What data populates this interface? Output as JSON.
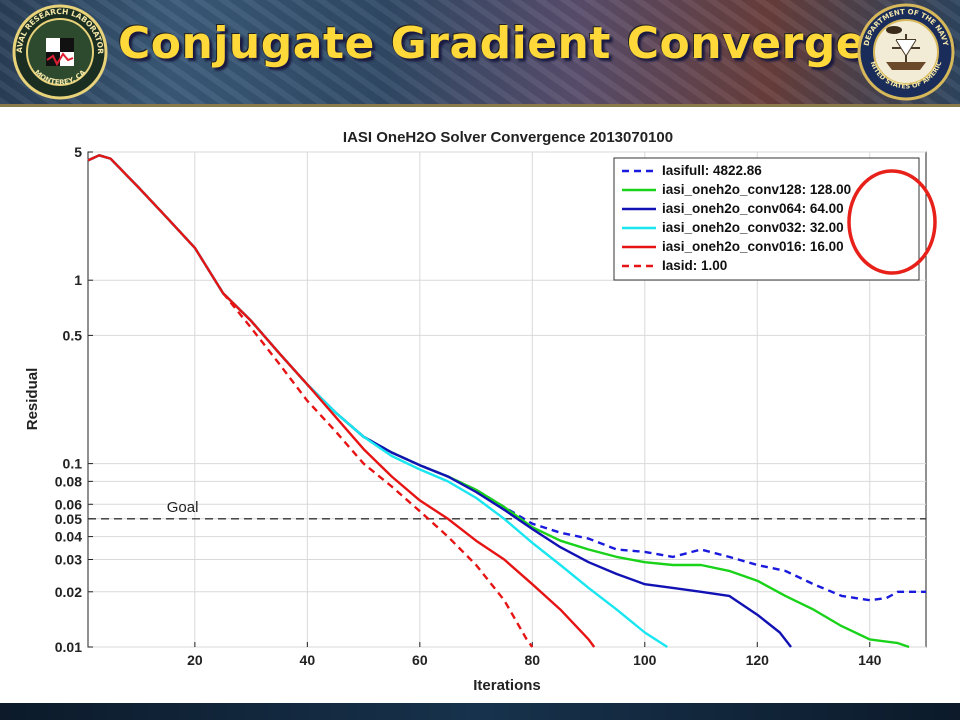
{
  "header": {
    "title": "Conjugate Gradient Convergence",
    "left_logo": {
      "icon": "nrl-seal-icon",
      "ring_text": "NAVAL RESEARCH LABORATORY",
      "bottom_text": "MONTEREY, CA"
    },
    "right_logo": {
      "icon": "navy-seal-icon",
      "ring_text": "DEPARTMENT OF THE NAVY",
      "bottom_text": "UNITED STATES OF AMERICA"
    }
  },
  "chart_data": {
    "type": "line",
    "title": "IASI OneH2O Solver Convergence 2013070100",
    "xlabel": "Iterations",
    "ylabel": "Residual",
    "yscale": "log",
    "xlim": [
      1,
      150
    ],
    "ylim": [
      0.01,
      5
    ],
    "xticks": [
      20,
      40,
      60,
      80,
      100,
      120,
      140
    ],
    "yticks": [
      0.01,
      0.02,
      0.03,
      0.04,
      0.05,
      0.06,
      0.08,
      0.1,
      0.5,
      1,
      5
    ],
    "ytick_labels": [
      "0.01",
      "0.02",
      "0.03",
      "0.04",
      "0.05",
      "0.06",
      "0.08",
      "0.1",
      "0.5",
      "1",
      "5"
    ],
    "grid": true,
    "legend_position": "top-right",
    "goal": {
      "value": 0.05,
      "label": "Goal"
    },
    "highlight": "red ellipse around legend values",
    "series": [
      {
        "name": "Iasifull: 4822.86",
        "color": "#1a1adc",
        "dash": "dashed",
        "points": [
          [
            1,
            4.5
          ],
          [
            3,
            4.8
          ],
          [
            5,
            4.6
          ],
          [
            10,
            3.2
          ],
          [
            15,
            2.2
          ],
          [
            20,
            1.5
          ],
          [
            25,
            0.85
          ],
          [
            30,
            0.6
          ],
          [
            35,
            0.4
          ],
          [
            40,
            0.27
          ],
          [
            45,
            0.19
          ],
          [
            50,
            0.14
          ],
          [
            55,
            0.115
          ],
          [
            60,
            0.098
          ],
          [
            65,
            0.085
          ],
          [
            70,
            0.072
          ],
          [
            75,
            0.058
          ],
          [
            80,
            0.047
          ],
          [
            85,
            0.042
          ],
          [
            90,
            0.039
          ],
          [
            95,
            0.034
          ],
          [
            100,
            0.033
          ],
          [
            105,
            0.031
          ],
          [
            110,
            0.034
          ],
          [
            115,
            0.031
          ],
          [
            120,
            0.028
          ],
          [
            125,
            0.026
          ],
          [
            130,
            0.022
          ],
          [
            135,
            0.019
          ],
          [
            140,
            0.018
          ],
          [
            143,
            0.0185
          ],
          [
            145,
            0.02
          ],
          [
            150,
            0.02
          ]
        ]
      },
      {
        "name": "iasi_oneh2o_conv128: 128.00",
        "color": "#19d219",
        "dash": "solid",
        "points": [
          [
            1,
            4.5
          ],
          [
            3,
            4.8
          ],
          [
            5,
            4.6
          ],
          [
            10,
            3.2
          ],
          [
            15,
            2.2
          ],
          [
            20,
            1.5
          ],
          [
            25,
            0.85
          ],
          [
            30,
            0.6
          ],
          [
            35,
            0.4
          ],
          [
            40,
            0.27
          ],
          [
            45,
            0.19
          ],
          [
            50,
            0.14
          ],
          [
            55,
            0.115
          ],
          [
            60,
            0.098
          ],
          [
            65,
            0.085
          ],
          [
            70,
            0.072
          ],
          [
            75,
            0.058
          ],
          [
            80,
            0.045
          ],
          [
            85,
            0.038
          ],
          [
            90,
            0.034
          ],
          [
            95,
            0.031
          ],
          [
            100,
            0.029
          ],
          [
            105,
            0.028
          ],
          [
            110,
            0.028
          ],
          [
            115,
            0.026
          ],
          [
            120,
            0.023
          ],
          [
            125,
            0.019
          ],
          [
            130,
            0.016
          ],
          [
            135,
            0.013
          ],
          [
            140,
            0.011
          ],
          [
            145,
            0.0105
          ],
          [
            147,
            0.01
          ]
        ]
      },
      {
        "name": "iasi_oneh2o_conv064: 64.00",
        "color": "#1212b4",
        "dash": "solid",
        "points": [
          [
            1,
            4.5
          ],
          [
            3,
            4.8
          ],
          [
            5,
            4.6
          ],
          [
            10,
            3.2
          ],
          [
            15,
            2.2
          ],
          [
            20,
            1.5
          ],
          [
            25,
            0.85
          ],
          [
            30,
            0.6
          ],
          [
            35,
            0.4
          ],
          [
            40,
            0.27
          ],
          [
            45,
            0.19
          ],
          [
            50,
            0.14
          ],
          [
            55,
            0.115
          ],
          [
            60,
            0.098
          ],
          [
            65,
            0.085
          ],
          [
            70,
            0.07
          ],
          [
            75,
            0.056
          ],
          [
            80,
            0.044
          ],
          [
            85,
            0.035
          ],
          [
            90,
            0.029
          ],
          [
            95,
            0.025
          ],
          [
            100,
            0.022
          ],
          [
            105,
            0.021
          ],
          [
            110,
            0.02
          ],
          [
            115,
            0.019
          ],
          [
            120,
            0.015
          ],
          [
            124,
            0.012
          ],
          [
            126,
            0.01
          ]
        ]
      },
      {
        "name": "iasi_oneh2o_conv032: 32.00",
        "color": "#19e6f0",
        "dash": "solid",
        "points": [
          [
            1,
            4.5
          ],
          [
            3,
            4.8
          ],
          [
            5,
            4.6
          ],
          [
            10,
            3.2
          ],
          [
            15,
            2.2
          ],
          [
            20,
            1.5
          ],
          [
            25,
            0.85
          ],
          [
            30,
            0.6
          ],
          [
            35,
            0.4
          ],
          [
            40,
            0.27
          ],
          [
            45,
            0.19
          ],
          [
            50,
            0.14
          ],
          [
            55,
            0.11
          ],
          [
            60,
            0.093
          ],
          [
            65,
            0.08
          ],
          [
            70,
            0.065
          ],
          [
            75,
            0.05
          ],
          [
            80,
            0.037
          ],
          [
            85,
            0.028
          ],
          [
            90,
            0.021
          ],
          [
            95,
            0.016
          ],
          [
            100,
            0.012
          ],
          [
            104,
            0.01
          ]
        ]
      },
      {
        "name": "iasi_oneh2o_conv016: 16.00",
        "color": "#e61414",
        "dash": "solid",
        "points": [
          [
            1,
            4.5
          ],
          [
            3,
            4.8
          ],
          [
            5,
            4.6
          ],
          [
            10,
            3.2
          ],
          [
            15,
            2.2
          ],
          [
            20,
            1.5
          ],
          [
            25,
            0.85
          ],
          [
            30,
            0.6
          ],
          [
            35,
            0.4
          ],
          [
            40,
            0.27
          ],
          [
            45,
            0.18
          ],
          [
            50,
            0.12
          ],
          [
            55,
            0.085
          ],
          [
            60,
            0.063
          ],
          [
            65,
            0.05
          ],
          [
            70,
            0.038
          ],
          [
            75,
            0.03
          ],
          [
            80,
            0.022
          ],
          [
            85,
            0.016
          ],
          [
            90,
            0.011
          ],
          [
            91,
            0.01
          ]
        ]
      },
      {
        "name": "Iasid:  1.00",
        "color": "#e61414",
        "dash": "dashed",
        "points": [
          [
            25,
            0.85
          ],
          [
            30,
            0.55
          ],
          [
            35,
            0.35
          ],
          [
            40,
            0.22
          ],
          [
            45,
            0.15
          ],
          [
            50,
            0.1
          ],
          [
            55,
            0.075
          ],
          [
            60,
            0.055
          ],
          [
            65,
            0.04
          ],
          [
            70,
            0.028
          ],
          [
            75,
            0.018
          ],
          [
            79,
            0.011
          ],
          [
            80,
            0.01
          ]
        ]
      }
    ]
  }
}
